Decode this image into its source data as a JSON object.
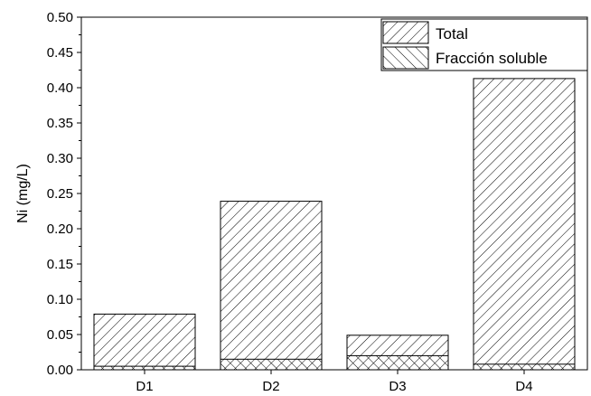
{
  "chart_data": {
    "type": "bar",
    "title": "",
    "xlabel": "",
    "ylabel": "Ni (mg/L)",
    "categories": [
      "D1",
      "D2",
      "D3",
      "D4"
    ],
    "ylim": [
      0,
      0.5
    ],
    "yticks": [
      "0.00",
      "0.05",
      "0.10",
      "0.15",
      "0.20",
      "0.25",
      "0.30",
      "0.35",
      "0.40",
      "0.45",
      "0.50"
    ],
    "series": [
      {
        "name": "Total",
        "values": [
          0.079,
          0.239,
          0.049,
          0.413
        ],
        "pattern": "forward-hatch"
      },
      {
        "name": "Fracción soluble",
        "values": [
          0.005,
          0.015,
          0.02,
          0.008
        ],
        "pattern": "back-hatch"
      }
    ],
    "grid": false,
    "legend_position": "top-right"
  }
}
